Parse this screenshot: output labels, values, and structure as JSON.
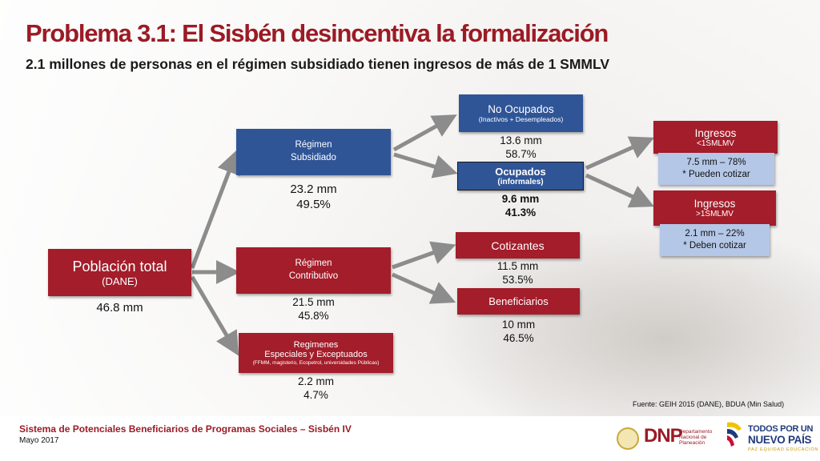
{
  "title": "Problema 3.1: El Sisbén desincentiva la formalización",
  "subtitle": "2.1 millones de personas en el régimen subsidiado tienen ingresos de más de 1 SMMLV",
  "nodes": {
    "poblacion": {
      "label": "Población total",
      "sub": "(DANE)",
      "value": "46.8 mm"
    },
    "subsidiado": {
      "label1": "Régimen",
      "label2": "Subsidiado",
      "value1": "23.2 mm",
      "value2": "49.5%"
    },
    "contributivo": {
      "label1": "Régimen",
      "label2": "Contributivo",
      "value1": "21.5 mm",
      "value2": "45.8%"
    },
    "especiales": {
      "label1": "Regimenes",
      "label2": "Especiales y  Exceptuados",
      "label3": "(FFMM, magisterio, Ecopetrol, universidades Públicas)",
      "value1": "2.2 mm",
      "value2": "4.7%"
    },
    "no_ocupados": {
      "label": "No Ocupados",
      "sub": "(Inactivos + Desempleados)",
      "value1": "13.6 mm",
      "value2": "58.7%"
    },
    "ocupados": {
      "label": "Ocupados",
      "sub": "(informales)",
      "value1": "9.6 mm",
      "value2": "41.3%"
    },
    "cotizantes": {
      "label": "Cotizantes",
      "value1": "11.5 mm",
      "value2": "53.5%"
    },
    "beneficiarios": {
      "label": "Beneficiarios",
      "value1": "10 mm",
      "value2": "46.5%"
    },
    "ingresos_bajo": {
      "label": "Ingresos",
      "sub": "<1SMLMV",
      "note1": "7.5 mm – 78%",
      "note2": "* Pueden cotizar"
    },
    "ingresos_alto": {
      "label": "Ingresos",
      "sub": ">1SMLMV",
      "note1": "2.1 mm – 22%",
      "note2": "* Deben cotizar"
    }
  },
  "source": "Fuente: GEIH 2015 (DANE), BDUA (Min Salud)",
  "footer": {
    "main": "Sistema de Potenciales Beneficiarios de Programas Sociales – Sisbén IV",
    "date": "Mayo 2017"
  },
  "logos": {
    "dnp": "DNP",
    "dnp_sub": "Departamento Nacional de Planeación",
    "tpn_line1": "TODOS POR UN",
    "tpn_line2": "NUEVO PAÍS",
    "tpn_line3": "PAZ   EQUIDAD   EDUCACIÓN"
  },
  "colors": {
    "red": "#a31d2a",
    "blue": "#2f5597",
    "light_blue": "#b4c7e7",
    "title_red": "#9b1b25",
    "arrow": "#8c8c8c"
  }
}
